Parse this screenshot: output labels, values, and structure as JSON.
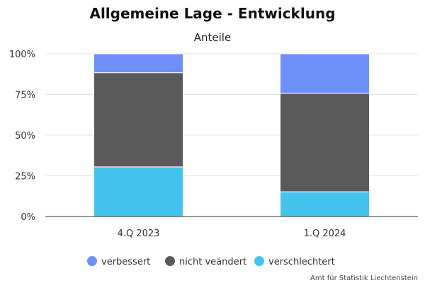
{
  "chart_data": {
    "type": "bar",
    "stacked": true,
    "title": "Allgemeine Lage - Entwicklung",
    "subtitle": "Anteile",
    "categories": [
      "4.Q 2023",
      "1.Q 2024"
    ],
    "series": [
      {
        "name": "verschlechtert",
        "color": "#45c3ef",
        "values": [
          30.5,
          15.2
        ]
      },
      {
        "name": "nicht veändert",
        "color": "#5a5a5a",
        "values": [
          57.9,
          60.5
        ]
      },
      {
        "name": "verbessert",
        "color": "#6d8ff7",
        "values": [
          11.6,
          24.3
        ]
      }
    ],
    "legend_order": [
      "verbessert",
      "nicht veändert",
      "verschlechtert"
    ],
    "ylim": [
      0,
      100
    ],
    "yticks": [
      "0%",
      "25%",
      "50%",
      "75%",
      "100%"
    ],
    "grid": true,
    "legend_position": "bottom-center"
  },
  "credit": "Amt für Statistik Liechtenstein"
}
